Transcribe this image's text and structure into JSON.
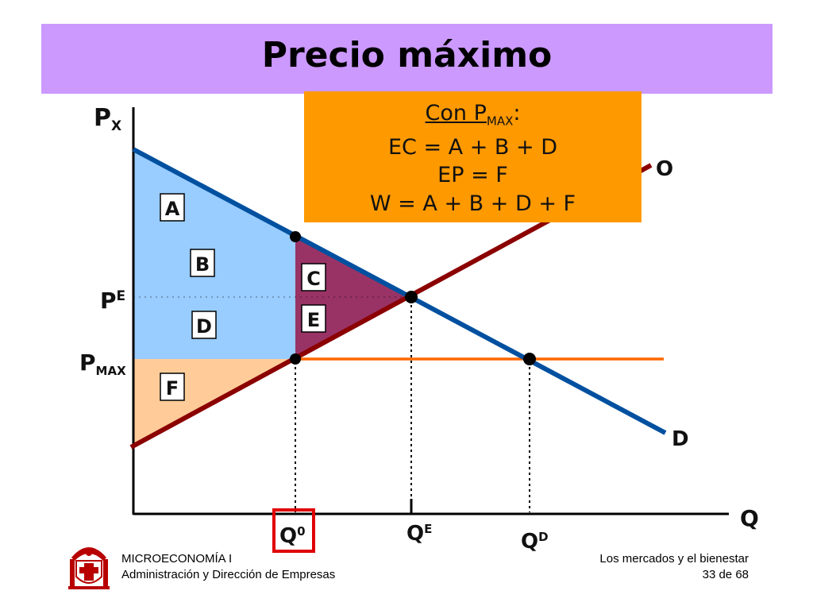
{
  "title": "Precio máximo",
  "axes": {
    "y_label": "P",
    "y_label_sub": "X",
    "x_label": "Q"
  },
  "price_labels": {
    "pe": "P",
    "pe_sup": "E",
    "pmax": "P",
    "pmax_sub": "MAX"
  },
  "quantity_labels": {
    "q0": "Q",
    "q0_sup": "0",
    "qe": "Q",
    "qe_sup": "E",
    "qd": "Q",
    "qd_sup": "D"
  },
  "curves": {
    "supply": "O",
    "demand": "D"
  },
  "regions": [
    "A",
    "B",
    "C",
    "D",
    "E",
    "F"
  ],
  "info_box": {
    "heading": "Con P",
    "heading_sub": "MAX",
    "heading_colon": ":",
    "line1": "EC = A + B + D",
    "line2": "EP = F",
    "line3": "W = A + B + D + F"
  },
  "footer": {
    "left_line1": "MICROECONOMÍA I",
    "left_line2": "Administración y Dirección de Empresas",
    "right_line1": "Los mercados y el bienestar",
    "right_line2": "33 de 68"
  },
  "colors": {
    "title_bg": "#cc99ff",
    "info_bg": "#ff9900",
    "consumer_area": "#99ccff",
    "producer_area": "#ffcc99",
    "deadweight_area": "#993366",
    "supply_line": "#8b0000",
    "demand_line": "#0050a0",
    "price_ceiling_line": "#ff6600",
    "highlight_box": "#e00000"
  }
}
